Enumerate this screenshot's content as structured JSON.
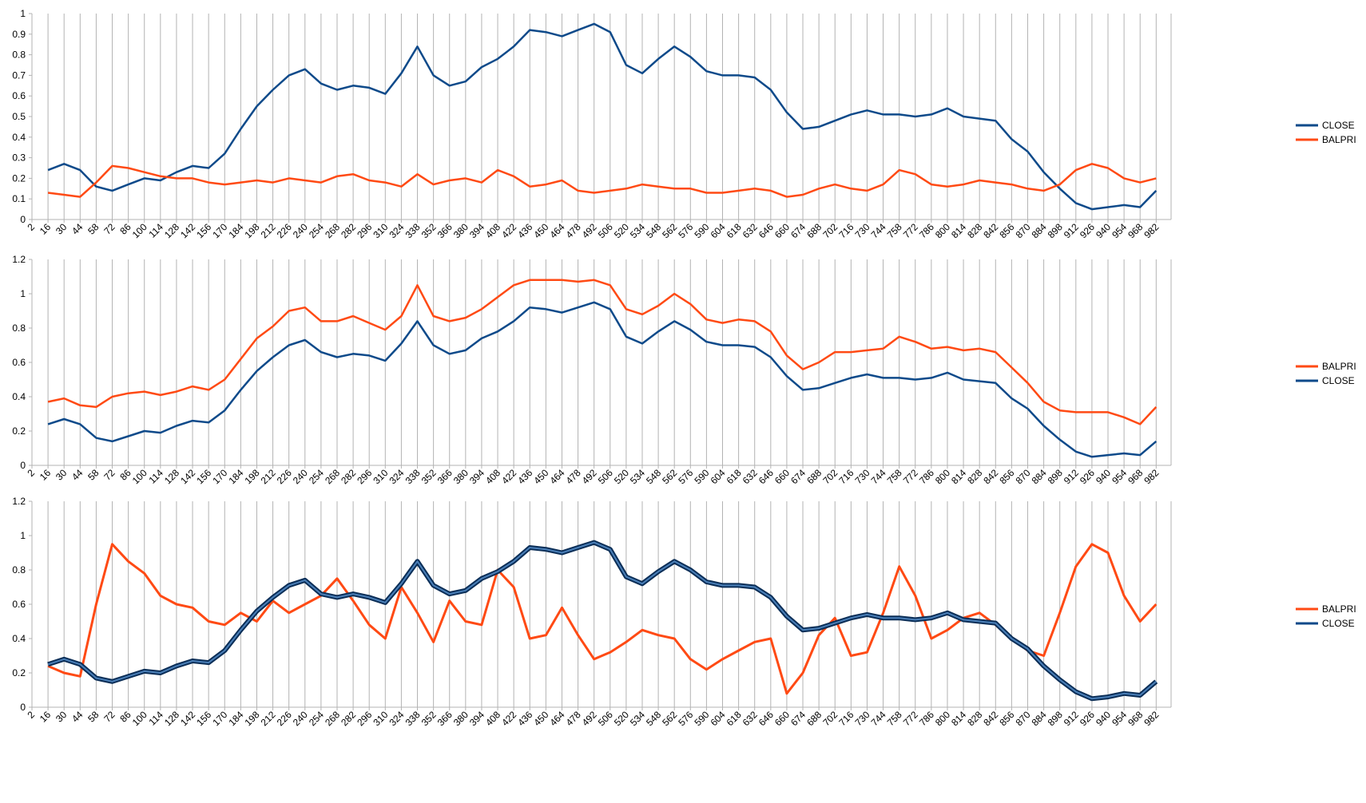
{
  "colors": {
    "close": "#0e4a8a",
    "balpri": "#ff4a14",
    "grid": "#b3b3b3",
    "axis": "#b3b3b3"
  },
  "x_tick_labels": [
    "2",
    "16",
    "30",
    "44",
    "58",
    "72",
    "86",
    "100",
    "114",
    "128",
    "142",
    "156",
    "170",
    "184",
    "198",
    "212",
    "226",
    "240",
    "254",
    "268",
    "282",
    "296",
    "310",
    "324",
    "338",
    "352",
    "366",
    "380",
    "394",
    "408",
    "422",
    "436",
    "450",
    "464",
    "478",
    "492",
    "506",
    "520",
    "534",
    "548",
    "562",
    "576",
    "590",
    "604",
    "618",
    "632",
    "646",
    "660",
    "674",
    "688",
    "702",
    "716",
    "730",
    "744",
    "758",
    "772",
    "786",
    "800",
    "814",
    "828",
    "842",
    "856",
    "870",
    "884",
    "898",
    "912",
    "926",
    "940",
    "954",
    "968",
    "982"
  ],
  "chart_data": [
    {
      "type": "line",
      "title": "",
      "xlabel": "",
      "ylabel": "",
      "x_range": [
        2,
        995
      ],
      "ylim": [
        0,
        1
      ],
      "y_ticks": [
        "0",
        "0.1",
        "0.2",
        "0.3",
        "0.4",
        "0.5",
        "0.6",
        "0.7",
        "0.8",
        "0.9",
        "1"
      ],
      "grid": "vertical",
      "legend_position": "right",
      "legend": [
        "CLOSE",
        "BALPRI"
      ],
      "series": [
        {
          "name": "CLOSE",
          "color": "#0e4a8a",
          "x": [
            16,
            30,
            44,
            58,
            72,
            86,
            100,
            114,
            128,
            142,
            156,
            170,
            184,
            198,
            212,
            226,
            240,
            254,
            268,
            282,
            296,
            310,
            324,
            338,
            352,
            366,
            380,
            394,
            408,
            422,
            436,
            450,
            464,
            478,
            492,
            506,
            520,
            534,
            548,
            562,
            576,
            590,
            604,
            618,
            632,
            646,
            660,
            674,
            688,
            702,
            716,
            730,
            744,
            758,
            772,
            786,
            800,
            814,
            828,
            842,
            856,
            870,
            884,
            898,
            912,
            926,
            940,
            954,
            968,
            982
          ],
          "values": [
            0.24,
            0.27,
            0.24,
            0.16,
            0.14,
            0.17,
            0.2,
            0.19,
            0.23,
            0.26,
            0.25,
            0.32,
            0.44,
            0.55,
            0.63,
            0.7,
            0.73,
            0.66,
            0.63,
            0.65,
            0.64,
            0.61,
            0.71,
            0.84,
            0.7,
            0.65,
            0.67,
            0.74,
            0.78,
            0.84,
            0.92,
            0.91,
            0.89,
            0.92,
            0.95,
            0.91,
            0.75,
            0.71,
            0.78,
            0.84,
            0.79,
            0.72,
            0.7,
            0.7,
            0.69,
            0.63,
            0.52,
            0.44,
            0.45,
            0.48,
            0.51,
            0.53,
            0.51,
            0.51,
            0.5,
            0.51,
            0.54,
            0.5,
            0.49,
            0.48,
            0.39,
            0.33,
            0.23,
            0.15,
            0.08,
            0.05,
            0.06,
            0.07,
            0.06,
            0.14
          ]
        },
        {
          "name": "BALPRI",
          "color": "#ff4a14",
          "x": [
            16,
            30,
            44,
            58,
            72,
            86,
            100,
            114,
            128,
            142,
            156,
            170,
            184,
            198,
            212,
            226,
            240,
            254,
            268,
            282,
            296,
            310,
            324,
            338,
            352,
            366,
            380,
            394,
            408,
            422,
            436,
            450,
            464,
            478,
            492,
            506,
            520,
            534,
            548,
            562,
            576,
            590,
            604,
            618,
            632,
            646,
            660,
            674,
            688,
            702,
            716,
            730,
            744,
            758,
            772,
            786,
            800,
            814,
            828,
            842,
            856,
            870,
            884,
            898,
            912,
            926,
            940,
            954,
            968,
            982
          ],
          "values": [
            0.13,
            0.12,
            0.11,
            0.18,
            0.26,
            0.25,
            0.23,
            0.21,
            0.2,
            0.2,
            0.18,
            0.17,
            0.18,
            0.19,
            0.18,
            0.2,
            0.19,
            0.18,
            0.21,
            0.22,
            0.19,
            0.18,
            0.16,
            0.22,
            0.17,
            0.19,
            0.2,
            0.18,
            0.24,
            0.21,
            0.16,
            0.17,
            0.19,
            0.14,
            0.13,
            0.14,
            0.15,
            0.17,
            0.16,
            0.15,
            0.15,
            0.13,
            0.13,
            0.14,
            0.15,
            0.14,
            0.11,
            0.12,
            0.15,
            0.17,
            0.15,
            0.14,
            0.17,
            0.24,
            0.22,
            0.17,
            0.16,
            0.17,
            0.19,
            0.18,
            0.17,
            0.15,
            0.14,
            0.17,
            0.24,
            0.27,
            0.25,
            0.2,
            0.18,
            0.2
          ]
        }
      ]
    },
    {
      "type": "line",
      "title": "",
      "xlabel": "",
      "ylabel": "",
      "x_range": [
        2,
        995
      ],
      "ylim": [
        0,
        1.2
      ],
      "y_ticks": [
        "0",
        "0.2",
        "0.4",
        "0.6",
        "0.8",
        "1",
        "1.2"
      ],
      "grid": "vertical",
      "legend_position": "right",
      "legend": [
        "BALPRI",
        "CLOSE"
      ],
      "series": [
        {
          "name": "BALPRI",
          "color": "#ff4a14",
          "x": [
            16,
            30,
            44,
            58,
            72,
            86,
            100,
            114,
            128,
            142,
            156,
            170,
            184,
            198,
            212,
            226,
            240,
            254,
            268,
            282,
            296,
            310,
            324,
            338,
            352,
            366,
            380,
            394,
            408,
            422,
            436,
            450,
            464,
            478,
            492,
            506,
            520,
            534,
            548,
            562,
            576,
            590,
            604,
            618,
            632,
            646,
            660,
            674,
            688,
            702,
            716,
            730,
            744,
            758,
            772,
            786,
            800,
            814,
            828,
            842,
            856,
            870,
            884,
            898,
            912,
            926,
            940,
            954,
            968,
            982
          ],
          "values": [
            0.37,
            0.39,
            0.35,
            0.34,
            0.4,
            0.42,
            0.43,
            0.41,
            0.43,
            0.46,
            0.44,
            0.5,
            0.62,
            0.74,
            0.81,
            0.9,
            0.92,
            0.84,
            0.84,
            0.87,
            0.83,
            0.79,
            0.87,
            1.05,
            0.87,
            0.84,
            0.86,
            0.91,
            0.98,
            1.05,
            1.08,
            1.08,
            1.08,
            1.07,
            1.08,
            1.05,
            0.91,
            0.88,
            0.93,
            1.0,
            0.94,
            0.85,
            0.83,
            0.85,
            0.84,
            0.78,
            0.64,
            0.56,
            0.6,
            0.66,
            0.66,
            0.67,
            0.68,
            0.75,
            0.72,
            0.68,
            0.69,
            0.67,
            0.68,
            0.66,
            0.57,
            0.48,
            0.37,
            0.32,
            0.31,
            0.31,
            0.31,
            0.28,
            0.24,
            0.34
          ]
        },
        {
          "name": "CLOSE",
          "color": "#0e4a8a",
          "x": [
            16,
            30,
            44,
            58,
            72,
            86,
            100,
            114,
            128,
            142,
            156,
            170,
            184,
            198,
            212,
            226,
            240,
            254,
            268,
            282,
            296,
            310,
            324,
            338,
            352,
            366,
            380,
            394,
            408,
            422,
            436,
            450,
            464,
            478,
            492,
            506,
            520,
            534,
            548,
            562,
            576,
            590,
            604,
            618,
            632,
            646,
            660,
            674,
            688,
            702,
            716,
            730,
            744,
            758,
            772,
            786,
            800,
            814,
            828,
            842,
            856,
            870,
            884,
            898,
            912,
            926,
            940,
            954,
            968,
            982
          ],
          "values": [
            0.24,
            0.27,
            0.24,
            0.16,
            0.14,
            0.17,
            0.2,
            0.19,
            0.23,
            0.26,
            0.25,
            0.32,
            0.44,
            0.55,
            0.63,
            0.7,
            0.73,
            0.66,
            0.63,
            0.65,
            0.64,
            0.61,
            0.71,
            0.84,
            0.7,
            0.65,
            0.67,
            0.74,
            0.78,
            0.84,
            0.92,
            0.91,
            0.89,
            0.92,
            0.95,
            0.91,
            0.75,
            0.71,
            0.78,
            0.84,
            0.79,
            0.72,
            0.7,
            0.7,
            0.69,
            0.63,
            0.52,
            0.44,
            0.45,
            0.48,
            0.51,
            0.53,
            0.51,
            0.51,
            0.5,
            0.51,
            0.54,
            0.5,
            0.49,
            0.48,
            0.39,
            0.33,
            0.23,
            0.15,
            0.08,
            0.05,
            0.06,
            0.07,
            0.06,
            0.14
          ]
        }
      ]
    },
    {
      "type": "line",
      "title": "",
      "xlabel": "",
      "ylabel": "",
      "x_range": [
        2,
        995
      ],
      "ylim": [
        0,
        1.2
      ],
      "y_ticks": [
        "0",
        "0.2",
        "0.4",
        "0.6",
        "0.8",
        "1",
        "1.2"
      ],
      "grid": "vertical",
      "legend_position": "right",
      "legend": [
        "BALPRI",
        "CLOSE"
      ],
      "series": [
        {
          "name": "BALPRI",
          "color": "#ff4a14",
          "x": [
            16,
            30,
            44,
            58,
            72,
            86,
            100,
            114,
            128,
            142,
            156,
            170,
            184,
            198,
            212,
            226,
            240,
            254,
            268,
            282,
            296,
            310,
            324,
            338,
            352,
            366,
            380,
            394,
            408,
            422,
            436,
            450,
            464,
            478,
            492,
            506,
            520,
            534,
            548,
            562,
            576,
            590,
            604,
            618,
            632,
            646,
            660,
            674,
            688,
            702,
            716,
            730,
            744,
            758,
            772,
            786,
            800,
            814,
            828,
            842,
            856,
            870,
            884,
            898,
            912,
            926,
            940,
            954,
            968,
            982
          ],
          "values": [
            0.24,
            0.2,
            0.18,
            0.6,
            0.95,
            0.85,
            0.78,
            0.65,
            0.6,
            0.58,
            0.5,
            0.48,
            0.55,
            0.5,
            0.62,
            0.55,
            0.6,
            0.65,
            0.75,
            0.62,
            0.48,
            0.4,
            0.7,
            0.55,
            0.38,
            0.62,
            0.5,
            0.48,
            0.8,
            0.7,
            0.4,
            0.42,
            0.58,
            0.42,
            0.28,
            0.32,
            0.38,
            0.45,
            0.42,
            0.4,
            0.28,
            0.22,
            0.28,
            0.33,
            0.38,
            0.4,
            0.08,
            0.2,
            0.42,
            0.52,
            0.3,
            0.32,
            0.55,
            0.82,
            0.65,
            0.4,
            0.45,
            0.52,
            0.55,
            0.48,
            0.4,
            0.33,
            0.3,
            0.55,
            0.82,
            0.95,
            0.9,
            0.65,
            0.5,
            0.6
          ]
        },
        {
          "name": "CLOSE",
          "color": "#0e4a8a",
          "x": [
            16,
            30,
            44,
            58,
            72,
            86,
            100,
            114,
            128,
            142,
            156,
            170,
            184,
            198,
            212,
            226,
            240,
            254,
            268,
            282,
            296,
            310,
            324,
            338,
            352,
            366,
            380,
            394,
            408,
            422,
            436,
            450,
            464,
            478,
            492,
            506,
            520,
            534,
            548,
            562,
            576,
            590,
            604,
            618,
            632,
            646,
            660,
            674,
            688,
            702,
            716,
            730,
            744,
            758,
            772,
            786,
            800,
            814,
            828,
            842,
            856,
            870,
            884,
            898,
            912,
            926,
            940,
            954,
            968,
            982
          ],
          "values": [
            0.25,
            0.28,
            0.25,
            0.17,
            0.15,
            0.18,
            0.21,
            0.2,
            0.24,
            0.27,
            0.26,
            0.33,
            0.45,
            0.56,
            0.64,
            0.71,
            0.74,
            0.66,
            0.64,
            0.66,
            0.64,
            0.61,
            0.72,
            0.85,
            0.71,
            0.66,
            0.68,
            0.75,
            0.79,
            0.85,
            0.93,
            0.92,
            0.9,
            0.93,
            0.96,
            0.92,
            0.76,
            0.72,
            0.79,
            0.85,
            0.8,
            0.73,
            0.71,
            0.71,
            0.7,
            0.64,
            0.53,
            0.45,
            0.46,
            0.49,
            0.52,
            0.54,
            0.52,
            0.52,
            0.51,
            0.52,
            0.55,
            0.51,
            0.5,
            0.49,
            0.4,
            0.34,
            0.24,
            0.16,
            0.09,
            0.05,
            0.06,
            0.08,
            0.07,
            0.15
          ]
        }
      ]
    }
  ]
}
